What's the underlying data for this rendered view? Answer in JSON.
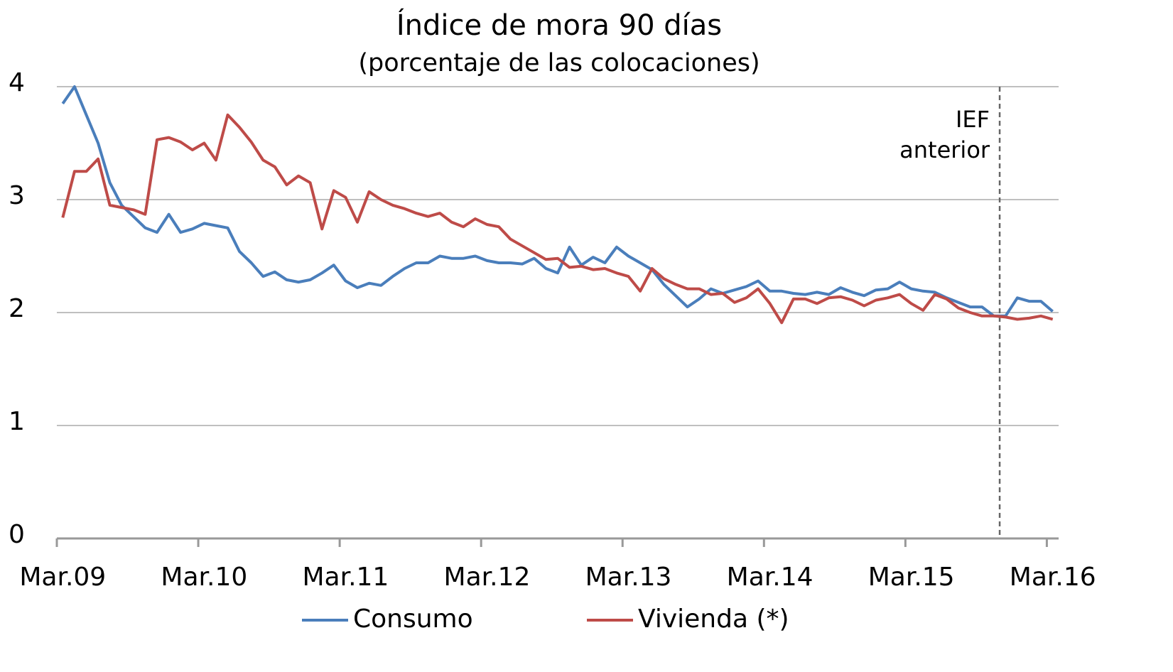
{
  "chart_data": {
    "type": "line",
    "title": "Índice de mora 90 días",
    "subtitle": "(porcentaje de las colocaciones)",
    "categories": [
      "Mar.09",
      null,
      null,
      null,
      null,
      null,
      null,
      null,
      null,
      null,
      null,
      null,
      "Mar.10",
      null,
      null,
      null,
      null,
      null,
      null,
      null,
      null,
      null,
      null,
      null,
      "Mar.11",
      null,
      null,
      null,
      null,
      null,
      null,
      null,
      null,
      null,
      null,
      null,
      "Mar.12",
      null,
      null,
      null,
      null,
      null,
      null,
      null,
      null,
      null,
      null,
      null,
      "Mar.13",
      null,
      null,
      null,
      null,
      null,
      null,
      null,
      null,
      null,
      null,
      null,
      "Mar.14",
      null,
      null,
      null,
      null,
      null,
      null,
      null,
      null,
      null,
      null,
      null,
      "Mar.15",
      null,
      null,
      null,
      null,
      null,
      null,
      null,
      null,
      null,
      null,
      null,
      "Mar.16"
    ],
    "series": [
      {
        "name": "Consumo",
        "color": "#4a7ebb",
        "values": [
          3.85,
          4.0,
          3.75,
          3.5,
          3.15,
          2.95,
          2.85,
          2.75,
          2.71,
          2.87,
          2.71,
          2.74,
          2.79,
          2.77,
          2.75,
          2.54,
          2.44,
          2.32,
          2.36,
          2.29,
          2.27,
          2.29,
          2.35,
          2.42,
          2.28,
          2.22,
          2.26,
          2.24,
          2.32,
          2.39,
          2.44,
          2.44,
          2.5,
          2.48,
          2.48,
          2.5,
          2.46,
          2.44,
          2.44,
          2.43,
          2.48,
          2.39,
          2.35,
          2.58,
          2.42,
          2.49,
          2.44,
          2.58,
          2.5,
          2.44,
          2.38,
          2.25,
          2.15,
          2.05,
          2.12,
          2.21,
          2.17,
          2.2,
          2.23,
          2.28,
          2.19,
          2.19,
          2.17,
          2.16,
          2.18,
          2.16,
          2.22,
          2.18,
          2.15,
          2.2,
          2.21,
          2.27,
          2.21,
          2.19,
          2.18,
          2.13,
          2.09,
          2.05,
          2.05,
          1.97,
          1.97,
          2.13,
          2.1,
          2.1,
          2.01
        ]
      },
      {
        "name": "Vivienda (*)",
        "color": "#be4b48",
        "values": [
          2.84,
          3.25,
          3.25,
          3.36,
          2.95,
          2.93,
          2.91,
          2.87,
          3.53,
          3.55,
          3.51,
          3.44,
          3.5,
          3.35,
          3.75,
          3.64,
          3.51,
          3.35,
          3.29,
          3.13,
          3.21,
          3.15,
          2.74,
          3.08,
          3.02,
          2.8,
          3.07,
          3.0,
          2.95,
          2.92,
          2.88,
          2.85,
          2.88,
          2.8,
          2.76,
          2.83,
          2.78,
          2.76,
          2.65,
          2.59,
          2.53,
          2.47,
          2.48,
          2.4,
          2.41,
          2.38,
          2.39,
          2.35,
          2.32,
          2.19,
          2.39,
          2.3,
          2.25,
          2.21,
          2.21,
          2.16,
          2.17,
          2.09,
          2.13,
          2.21,
          2.08,
          1.91,
          2.12,
          2.12,
          2.08,
          2.13,
          2.14,
          2.11,
          2.06,
          2.11,
          2.13,
          2.16,
          2.08,
          2.02,
          2.16,
          2.12,
          2.04,
          2.0,
          1.97,
          1.97,
          1.96,
          1.94,
          1.95,
          1.97,
          1.94
        ]
      }
    ],
    "ylim": [
      0,
      4
    ],
    "yticks": [
      0,
      1,
      2,
      3,
      4
    ],
    "grid": true,
    "annotation": {
      "lines": [
        "IEF",
        "anterior"
      ],
      "category_index": 79
    },
    "legend": "bottom"
  }
}
